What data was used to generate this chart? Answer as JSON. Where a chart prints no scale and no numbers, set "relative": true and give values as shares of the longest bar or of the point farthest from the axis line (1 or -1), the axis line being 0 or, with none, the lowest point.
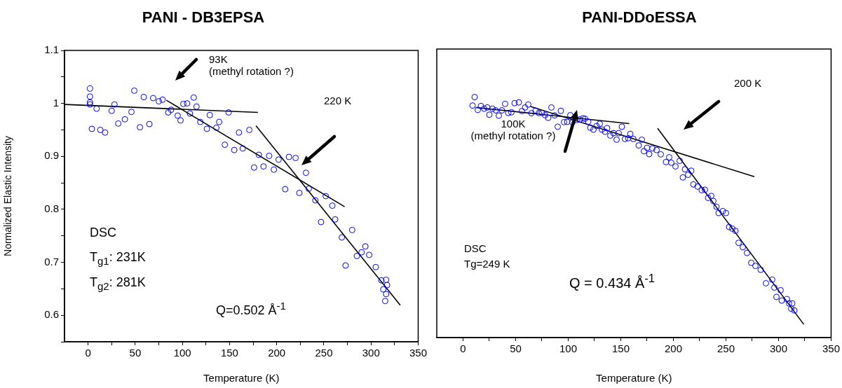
{
  "chart_data": [
    {
      "type": "scatter",
      "title": "PANI - DB3EPSA",
      "xlabel": "Temperature (K)",
      "ylabel": "Normalized Elastic Intensity",
      "xlim": [
        -25,
        350
      ],
      "xticks": [
        0,
        {
          "value": 25,
          "label": null
        },
        50,
        {
          "value": 75,
          "label": null
        },
        100,
        {
          "value": 125,
          "label": null
        },
        150,
        {
          "value": 175,
          "label": null
        },
        200,
        {
          "value": 225,
          "label": null
        },
        250,
        {
          "value": 275,
          "label": null
        },
        300,
        {
          "value": 325,
          "label": null
        },
        350
      ],
      "ylim": [
        0.55,
        1.1
      ],
      "yticks": [
        {
          "value": 0.55,
          "label": null
        },
        0.6,
        {
          "value": 0.65,
          "label": null
        },
        0.7,
        {
          "value": 0.75,
          "label": null
        },
        0.8,
        {
          "value": 0.85,
          "label": null
        },
        0.9,
        {
          "value": 0.95,
          "label": null
        },
        1.0,
        {
          "value": 1.05,
          "label": null
        },
        1.1
      ],
      "series": [
        {
          "color": "#0000ff",
          "marker": "circle",
          "x": [
            2,
            2,
            2,
            2,
            4,
            9,
            13,
            18,
            25,
            28,
            32,
            39,
            46,
            49,
            55,
            59,
            65,
            69,
            75,
            79,
            85,
            88,
            95,
            98,
            101,
            105,
            108,
            112,
            115,
            119,
            126,
            129,
            136,
            139,
            145,
            149,
            155,
            160,
            164,
            171,
            176,
            181,
            186,
            192,
            197,
            202,
            209,
            213,
            220,
            224,
            231,
            234,
            241,
            247,
            252,
            259,
            262,
            269,
            273,
            280,
            285,
            290,
            294,
            298,
            305,
            311,
            313,
            315,
            316,
            316,
            317
          ],
          "values": [
            1.028,
            1.013,
            1.002,
            0.998,
            0.952,
            0.99,
            0.95,
            0.945,
            0.986,
            0.998,
            0.962,
            0.97,
            0.984,
            1.024,
            0.955,
            1.012,
            0.961,
            1.01,
            1.004,
            1.007,
            0.983,
            0.988,
            0.977,
            0.968,
            0.999,
            1.0,
            0.981,
            1.011,
            0.994,
            0.965,
            0.952,
            0.978,
            0.954,
            0.965,
            0.922,
            0.983,
            0.912,
            0.945,
            0.915,
            0.95,
            0.879,
            0.903,
            0.881,
            0.901,
            0.875,
            0.894,
            0.838,
            0.899,
            0.897,
            0.831,
            0.869,
            0.839,
            0.817,
            0.776,
            0.825,
            0.807,
            0.781,
            0.747,
            0.694,
            0.761,
            0.712,
            0.719,
            0.73,
            0.714,
            0.691,
            0.666,
            0.649,
            0.627,
            0.667,
            0.64,
            0.657
          ]
        },
        {
          "type": "line",
          "color": "#000000",
          "x": [
            -25,
            180
          ],
          "values": [
            0.998,
            0.983
          ]
        },
        {
          "type": "line",
          "color": "#000000",
          "x": [
            83,
            272
          ],
          "values": [
            1.006,
            0.805
          ]
        },
        {
          "type": "line",
          "color": "#000000",
          "x": [
            178,
            331
          ],
          "values": [
            0.958,
            0.619
          ]
        }
      ],
      "annotations": [
        "93K\n(methyl rotation ?)",
        "220 K",
        "DSC",
        "T$_{g1}$: 231K",
        "T$_{g2}$: 281K",
        "Q=0.502 Å$^{-1}$"
      ]
    },
    {
      "type": "scatter",
      "title": "PANI-DDoESSA",
      "xlabel": "Temperature (K)",
      "relative": true,
      "tick_labels": "x",
      "xlim": [
        -25,
        350
      ],
      "xticks": [
        0,
        {
          "value": 25,
          "label": null
        },
        50,
        {
          "value": 75,
          "label": null
        },
        100,
        {
          "value": 125,
          "label": null
        },
        150,
        {
          "value": 175,
          "label": null
        },
        200,
        {
          "value": 225,
          "label": null
        },
        250,
        {
          "value": 275,
          "label": null
        },
        300,
        {
          "value": 325,
          "label": null
        },
        350
      ],
      "series": [
        {
          "color": "#0000ff",
          "marker": "circle",
          "x": [
            11,
            9,
            14,
            17,
            20,
            23,
            25,
            28,
            31,
            34,
            37,
            40,
            43,
            46,
            49,
            53,
            56,
            59,
            62,
            65,
            69,
            72,
            75,
            78,
            81,
            84,
            87,
            90,
            93,
            96,
            99,
            102,
            104,
            108,
            111,
            114,
            116,
            119,
            121,
            124,
            127,
            130,
            132,
            135,
            137,
            140,
            143,
            146,
            148,
            151,
            154,
            157,
            159,
            162,
            167,
            170,
            172,
            175,
            177,
            180,
            184,
            188,
            193,
            196,
            198,
            202,
            206,
            209,
            211,
            214,
            217,
            219,
            223,
            227,
            230,
            233,
            236,
            238,
            241,
            243,
            247,
            250,
            253,
            256,
            259,
            262,
            266,
            270,
            274,
            278,
            283,
            288,
            294,
            296,
            302,
            298,
            303,
            308,
            310,
            313,
            312,
            315
          ],
          "values": [
            1.0,
            0.965,
            0.947,
            0.963,
            0.952,
            0.957,
            0.927,
            0.952,
            0.945,
            0.923,
            0.945,
            0.972,
            0.934,
            0.937,
            0.975,
            0.978,
            0.942,
            0.957,
            0.969,
            0.933,
            0.944,
            0.934,
            0.934,
            0.925,
            0.914,
            0.957,
            0.924,
            0.877,
            0.943,
            0.896,
            0.897,
            0.925,
            0.895,
            0.905,
            0.907,
            0.912,
            0.91,
            0.898,
            0.873,
            0.865,
            0.88,
            0.889,
            0.865,
            0.856,
            0.871,
            0.84,
            0.85,
            0.823,
            0.85,
            0.877,
            0.826,
            0.829,
            0.847,
            0.826,
            0.799,
            0.823,
            0.775,
            0.789,
            0.763,
            0.787,
            0.78,
            0.762,
            0.73,
            0.75,
            0.727,
            0.712,
            0.735,
            0.666,
            0.7,
            0.677,
            0.694,
            0.637,
            0.628,
            0.613,
            0.615,
            0.581,
            0.589,
            0.568,
            0.544,
            0.518,
            0.526,
            0.518,
            0.46,
            0.453,
            0.444,
            0.394,
            0.376,
            0.352,
            0.311,
            0.298,
            0.282,
            0.226,
            0.241,
            0.208,
            0.197,
            0.169,
            0.154,
            0.16,
            0.142,
            0.142,
            0.12,
            0.113
          ]
        },
        {
          "type": "line",
          "color": "#000000",
          "x": [
            12,
            158
          ],
          "values": [
            0.957,
            0.89
          ]
        },
        {
          "type": "line",
          "color": "#000000",
          "x": [
            64,
            277
          ],
          "values": [
            0.961,
            0.669
          ]
        },
        {
          "type": "line",
          "color": "#000000",
          "x": [
            185,
            324
          ],
          "values": [
            0.87,
            0.055
          ]
        }
      ],
      "annotations": [
        "200 K",
        "100K\n(methyl rotation ?)",
        "DSC",
        "Tg=249 K",
        "Q = 0.434 Å$^{-1}$"
      ]
    }
  ]
}
